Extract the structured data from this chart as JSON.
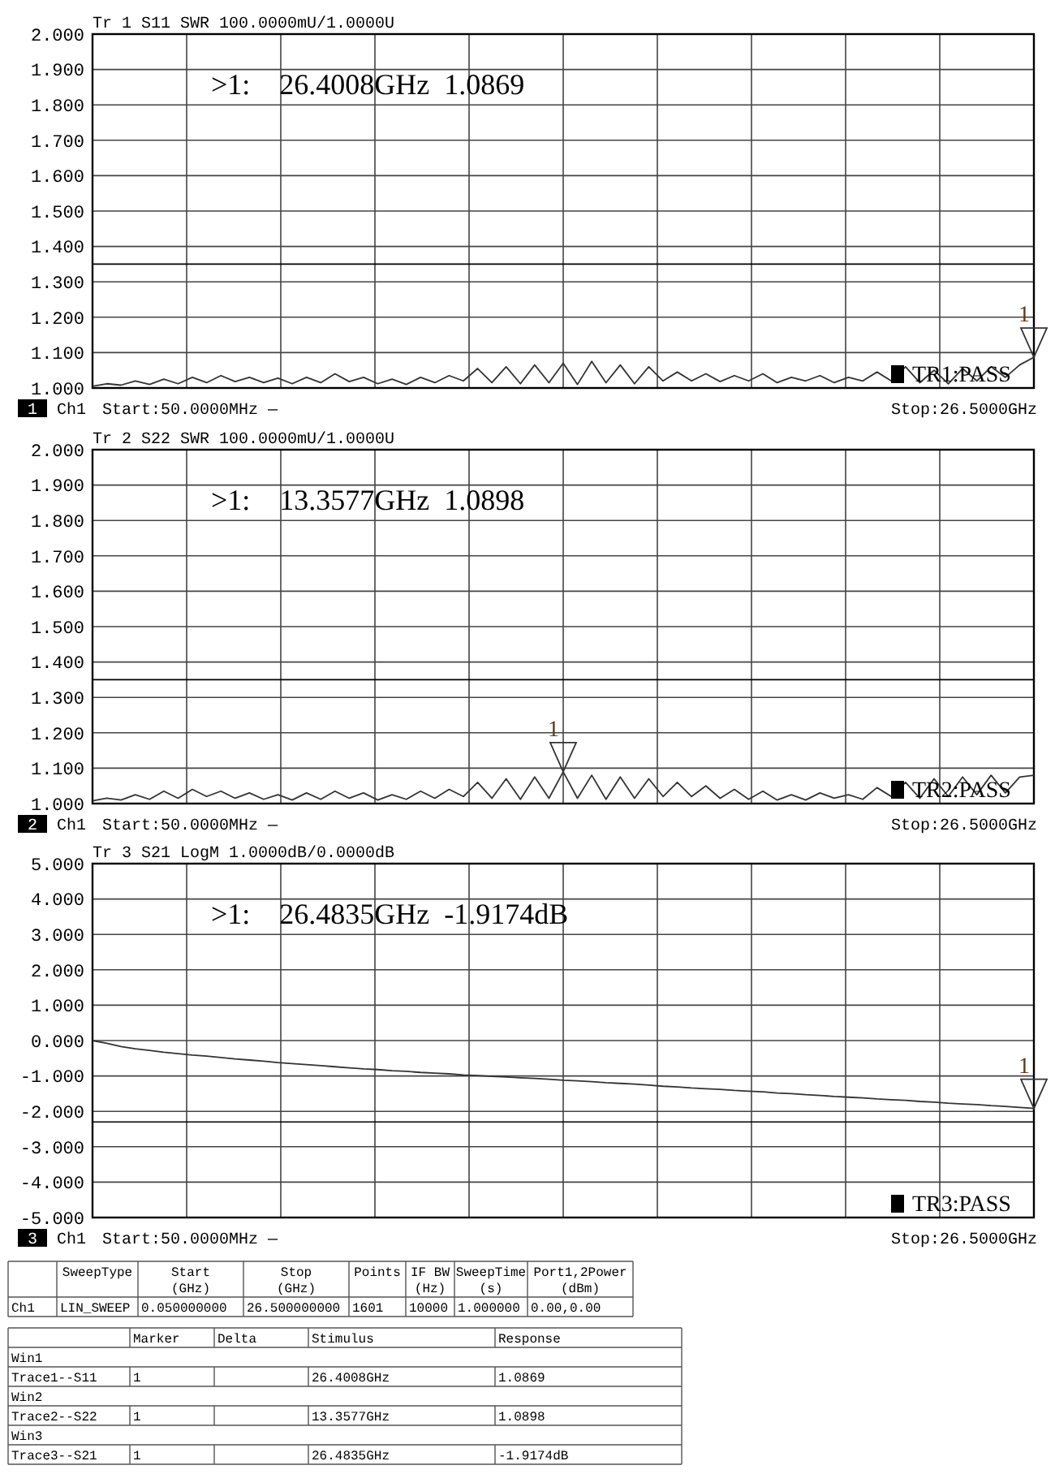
{
  "chart_data": [
    {
      "type": "line",
      "title": "Tr 1  S11 SWR 100.0000mU/1.0000U",
      "categories": [
        null,
        null,
        null,
        null,
        null,
        null,
        null,
        null,
        null,
        null,
        null,
        null,
        null,
        null,
        null,
        null,
        null,
        null,
        null,
        null,
        null,
        null,
        null,
        null,
        null,
        null,
        null,
        null,
        null,
        null,
        null,
        null,
        null,
        null,
        null,
        null,
        null,
        null,
        null,
        null,
        null,
        null,
        null,
        null,
        null,
        null,
        null,
        null,
        null,
        null,
        null,
        null,
        null,
        null,
        null,
        null,
        null,
        null,
        null,
        null,
        null,
        null,
        null,
        null,
        null,
        null,
        null
      ],
      "series": [
        {
          "color": "#333333",
          "values": [
            1.005,
            1.012,
            1.008,
            1.02,
            1.01,
            1.025,
            1.012,
            1.03,
            1.015,
            1.035,
            1.018,
            1.03,
            1.015,
            1.028,
            1.012,
            1.03,
            1.015,
            1.04,
            1.018,
            1.03,
            1.012,
            1.025,
            1.01,
            1.03,
            1.015,
            1.035,
            1.02,
            1.055,
            1.015,
            1.06,
            1.012,
            1.065,
            1.015,
            1.07,
            1.01,
            1.075,
            1.015,
            1.065,
            1.012,
            1.06,
            1.02,
            1.045,
            1.02,
            1.04,
            1.018,
            1.035,
            1.02,
            1.04,
            1.015,
            1.03,
            1.02,
            1.035,
            1.015,
            1.03,
            1.02,
            1.045,
            1.02,
            1.06,
            1.015,
            1.05,
            1.012,
            1.055,
            1.02,
            1.06,
            1.03,
            1.065,
            1.0869
          ]
        }
      ],
      "ylim": [
        1,
        2
      ],
      "yticks": [
        {
          "value": 1,
          "label": "1.000"
        },
        {
          "value": 1.1,
          "label": "1.100"
        },
        {
          "value": 1.2,
          "label": "1.200"
        },
        {
          "value": 1.3,
          "label": "1.300"
        },
        {
          "value": 1.4,
          "label": "1.400"
        },
        {
          "value": 1.5,
          "label": "1.500"
        },
        {
          "value": 1.6,
          "label": "1.600"
        },
        {
          "value": 1.7,
          "label": "1.700"
        },
        {
          "value": 1.8,
          "label": "1.800"
        },
        {
          "value": 1.9,
          "label": "1.900"
        },
        {
          "value": 2,
          "label": "2.000"
        }
      ],
      "grid": true,
      "tick_labels": "y",
      "ref_lines": [
        {
          "axis": "y",
          "value": 1.35,
          "color": "#000000"
        }
      ],
      "annotations": [
        ">1:    26.4008GHz  1.0869",
        "TR1:PASS",
        "1",
        "Ch1",
        "Start:50.0000MHz —",
        "Stop:26.5000GHz",
        {
          "text": "1",
          "y": 1.0869
        }
      ]
    },
    {
      "type": "line",
      "title": "Tr 2  S22 SWR 100.0000mU/1.0000U",
      "categories": [
        null,
        null,
        null,
        null,
        null,
        null,
        null,
        null,
        null,
        null,
        null,
        null,
        null,
        null,
        null,
        null,
        null,
        null,
        null,
        null,
        null,
        null,
        null,
        null,
        null,
        null,
        null,
        null,
        null,
        null,
        null,
        null,
        null,
        null,
        null,
        null,
        null,
        null,
        null,
        null,
        null,
        null,
        null,
        null,
        null,
        null,
        null,
        null,
        null,
        null,
        null,
        null,
        null,
        null,
        null,
        null,
        null,
        null,
        null,
        null,
        null,
        null,
        null,
        null,
        null,
        null,
        null
      ],
      "series": [
        {
          "color": "#333333",
          "values": [
            1.008,
            1.015,
            1.01,
            1.025,
            1.012,
            1.035,
            1.015,
            1.04,
            1.02,
            1.035,
            1.015,
            1.03,
            1.012,
            1.025,
            1.01,
            1.03,
            1.012,
            1.035,
            1.015,
            1.03,
            1.01,
            1.025,
            1.012,
            1.035,
            1.015,
            1.04,
            1.02,
            1.06,
            1.015,
            1.07,
            1.012,
            1.075,
            1.015,
            1.0898,
            1.015,
            1.08,
            1.012,
            1.075,
            1.015,
            1.07,
            1.02,
            1.06,
            1.02,
            1.05,
            1.015,
            1.04,
            1.012,
            1.035,
            1.01,
            1.025,
            1.01,
            1.03,
            1.015,
            1.025,
            1.012,
            1.045,
            1.02,
            1.06,
            1.015,
            1.07,
            1.02,
            1.075,
            1.025,
            1.08,
            1.03,
            1.075,
            1.08
          ]
        }
      ],
      "ylim": [
        1,
        2
      ],
      "yticks": [
        {
          "value": 1,
          "label": "1.000"
        },
        {
          "value": 1.1,
          "label": "1.100"
        },
        {
          "value": 1.2,
          "label": "1.200"
        },
        {
          "value": 1.3,
          "label": "1.300"
        },
        {
          "value": 1.4,
          "label": "1.400"
        },
        {
          "value": 1.5,
          "label": "1.500"
        },
        {
          "value": 1.6,
          "label": "1.600"
        },
        {
          "value": 1.7,
          "label": "1.700"
        },
        {
          "value": 1.8,
          "label": "1.800"
        },
        {
          "value": 1.9,
          "label": "1.900"
        },
        {
          "value": 2,
          "label": "2.000"
        }
      ],
      "grid": true,
      "tick_labels": "y",
      "ref_lines": [
        {
          "axis": "y",
          "value": 1.35,
          "color": "#000000"
        }
      ],
      "annotations": [
        ">1:    13.3577GHz  1.0898",
        "TR2:PASS",
        "2",
        "Ch1",
        "Start:50.0000MHz —",
        "Stop:26.5000GHz",
        {
          "text": "1",
          "y": 1.0898
        }
      ]
    },
    {
      "type": "line",
      "title": "Tr 3  S21 LogM 1.0000dB/0.0000dB",
      "categories": [
        null,
        null,
        null,
        null,
        null,
        null,
        null,
        null,
        null,
        null,
        null,
        null,
        null,
        null,
        null,
        null,
        null,
        null,
        null,
        null,
        null,
        null,
        null,
        null,
        null,
        null,
        null,
        null,
        null,
        null,
        null,
        null,
        null,
        null,
        null,
        null,
        null,
        null,
        null,
        null,
        null,
        null,
        null,
        null,
        null,
        null,
        null,
        null,
        null,
        null,
        null,
        null,
        null,
        null,
        null,
        null,
        null,
        null,
        null,
        null,
        null,
        null,
        null,
        null,
        null,
        null,
        null
      ],
      "series": [
        {
          "color": "#333333",
          "values": [
            0,
            -0.08,
            -0.17,
            -0.23,
            -0.28,
            -0.33,
            -0.37,
            -0.41,
            -0.44,
            -0.48,
            -0.52,
            -0.55,
            -0.58,
            -0.62,
            -0.65,
            -0.68,
            -0.71,
            -0.74,
            -0.77,
            -0.8,
            -0.82,
            -0.85,
            -0.87,
            -0.9,
            -0.92,
            -0.94,
            -0.97,
            -0.99,
            -1.01,
            -1.03,
            -1.05,
            -1.07,
            -1.09,
            -1.12,
            -1.14,
            -1.16,
            -1.19,
            -1.21,
            -1.23,
            -1.26,
            -1.29,
            -1.31,
            -1.34,
            -1.36,
            -1.38,
            -1.41,
            -1.43,
            -1.45,
            -1.48,
            -1.5,
            -1.53,
            -1.55,
            -1.58,
            -1.6,
            -1.62,
            -1.65,
            -1.67,
            -1.69,
            -1.72,
            -1.74,
            -1.77,
            -1.79,
            -1.81,
            -1.84,
            -1.86,
            -1.89,
            -1.9174
          ]
        }
      ],
      "ylim": [
        -5,
        5
      ],
      "yticks": [
        {
          "value": -5,
          "label": "-5.000"
        },
        {
          "value": -4,
          "label": "-4.000"
        },
        {
          "value": -3,
          "label": "-3.000"
        },
        {
          "value": -2,
          "label": "-2.000"
        },
        {
          "value": -1,
          "label": "-1.000"
        },
        {
          "value": 0,
          "label": "0.000"
        },
        {
          "value": 1,
          "label": "1.000"
        },
        {
          "value": 2,
          "label": "2.000"
        },
        {
          "value": 3,
          "label": "3.000"
        },
        {
          "value": 4,
          "label": "4.000"
        },
        {
          "value": 5,
          "label": "5.000"
        }
      ],
      "grid": true,
      "tick_labels": "y",
      "ref_lines": [
        {
          "axis": "y",
          "value": -2.3,
          "color": "#000000"
        }
      ],
      "annotations": [
        ">1:    26.4835GHz  -1.9174dB",
        "TR3:PASS",
        "3",
        "Ch1",
        "Start:50.0000MHz —",
        "Stop:26.5000GHz",
        {
          "text": "1",
          "y": -1.9174
        }
      ]
    },
    {
      "type": "other",
      "categories": [
        null,
        "SweepType",
        "Start\n(GHz)",
        "Stop\n(GHz)",
        "Points",
        "IF BW\n(Hz)",
        "SweepTime\n(s)",
        "Port1,2Power\n(dBm)"
      ],
      "cell_labels": [
        [
          "Ch1",
          "LIN_SWEEP",
          "0.050000000",
          "26.500000000",
          "1601",
          "10000",
          "1.000000",
          "0.00,0.00"
        ]
      ]
    },
    {
      "type": "other",
      "categories": [
        null,
        "Marker",
        "Delta",
        "Stimulus",
        "Response"
      ],
      "cell_labels": [
        [
          "Win1",
          null,
          null,
          null,
          null
        ],
        [
          "Trace1--S11",
          "1",
          null,
          "26.4008GHz",
          "1.0869"
        ],
        [
          "Win2",
          null,
          null,
          null,
          null
        ],
        [
          "Trace2--S22",
          "1",
          null,
          "13.3577GHz",
          "1.0898"
        ],
        [
          "Win3",
          null,
          null,
          null,
          null
        ],
        [
          "Trace3--S21",
          "1",
          null,
          "26.4835GHz",
          "-1.9174dB"
        ]
      ]
    }
  ]
}
